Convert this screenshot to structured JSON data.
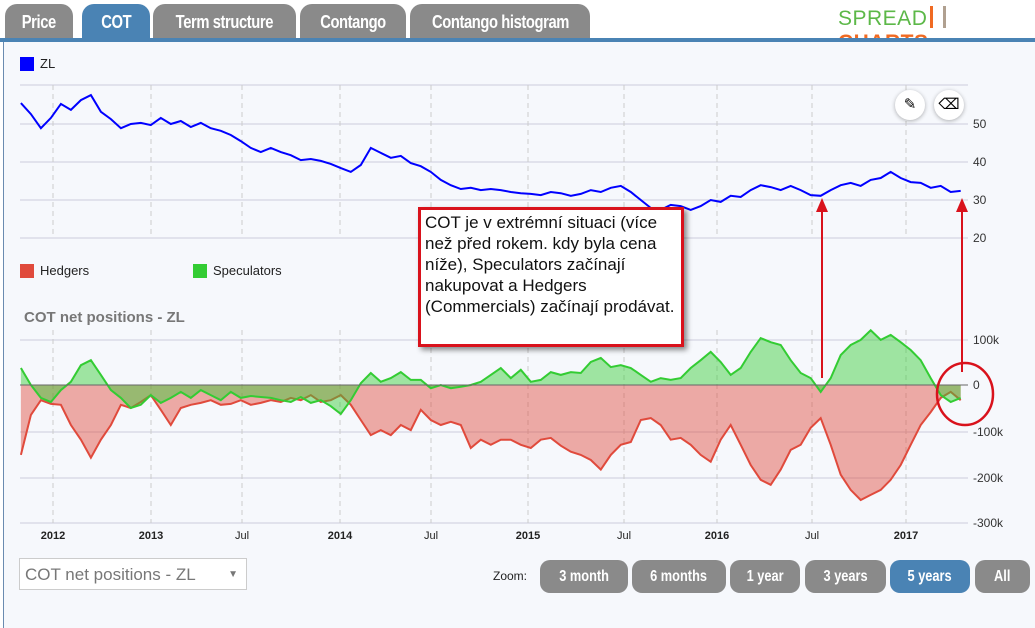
{
  "tabs": [
    {
      "label": "Price"
    },
    {
      "label": "COT"
    },
    {
      "label": "Term structure"
    },
    {
      "label": "Contango"
    },
    {
      "label": "Contango histogram"
    }
  ],
  "active_tab": "COT",
  "logo": {
    "part1": "SPREAD",
    "part2": "CHARTS"
  },
  "toolbar": {
    "pencil_icon": "pencil-icon",
    "eraser_icon": "eraser-icon"
  },
  "annotation": "COT je v extrémní situaci (více než před rokem. kdy byla cena níže), Speculators začínají nakupovat a Hedgers (Commercials) začínají prodávat.",
  "selector": {
    "value": "COT net positions - ZL"
  },
  "zoom": {
    "label": "Zoom:",
    "buttons": [
      "3 month",
      "6 months",
      "1 year",
      "3 years",
      "5 years",
      "All"
    ],
    "active": "5 years"
  },
  "colors": {
    "accent": "#4a83b4",
    "price": "#0000ff",
    "hedgers": "#e04a3c",
    "speculators": "#33cc33",
    "annotation": "#d9121c"
  },
  "chart_data": [
    {
      "type": "line",
      "legend": [
        "ZL"
      ],
      "x_start": 2011.83,
      "x_step": 0.0529,
      "ylim": [
        20,
        60
      ],
      "yticks": [
        "50",
        "40",
        "30",
        "20"
      ],
      "series": [
        {
          "name": "ZL",
          "values": [
            55.5,
            52.6,
            48.9,
            51.6,
            55.3,
            53.7,
            56.3,
            57.6,
            53.2,
            51.3,
            48.9,
            50,
            50.3,
            49.7,
            51.6,
            50,
            50.8,
            49.2,
            50.3,
            48.9,
            48.2,
            47.1,
            45.5,
            43.7,
            42.6,
            43.7,
            42.6,
            41.8,
            40.5,
            40.8,
            40.3,
            39.5,
            38.4,
            37.4,
            39.2,
            43.7,
            42.4,
            41.1,
            41.6,
            39.7,
            38.9,
            37.4,
            35.3,
            33.9,
            32.9,
            33.2,
            32.6,
            32.9,
            32.6,
            32.1,
            31.8,
            31.6,
            31.3,
            32.1,
            31.8,
            31.1,
            31.6,
            32.6,
            32.1,
            33.2,
            33.7,
            32.1,
            30,
            27.9,
            27.4,
            28.7,
            28.4,
            27.4,
            28.4,
            30,
            29.5,
            31.1,
            30.8,
            32.6,
            33.9,
            33.4,
            32.6,
            33.7,
            32.6,
            31.3,
            31.1,
            32.6,
            33.9,
            34.5,
            33.7,
            35.3,
            35.8,
            37.4,
            35.8,
            34.7,
            34.5,
            33.2,
            33.7,
            32.1,
            32.4
          ]
        }
      ]
    },
    {
      "type": "area",
      "title": "COT net positions - ZL",
      "legend": [
        "Hedgers",
        "Speculators"
      ],
      "x_start": 2011.83,
      "x_step": 0.0529,
      "ylim": [
        -300,
        100
      ],
      "yticks": [
        "100k",
        "0",
        "-100k",
        "-200k",
        "-300k"
      ],
      "xticks": [
        "2012",
        "2013",
        "Jul",
        "2014",
        "Jul",
        "2015",
        "Jul",
        "2016",
        "Jul",
        "2017"
      ],
      "series": [
        {
          "name": "Hedgers",
          "values": [
            -152,
            -65,
            -33,
            -41,
            -43,
            -87,
            -119,
            -158,
            -119,
            -87,
            -43,
            -50,
            -37,
            -22,
            -54,
            -87,
            -50,
            -43,
            -39,
            -33,
            -43,
            -41,
            -33,
            -43,
            -39,
            -33,
            -37,
            -28,
            -33,
            -22,
            -37,
            -33,
            -22,
            -43,
            -76,
            -109,
            -98,
            -109,
            -87,
            -98,
            -54,
            -76,
            -87,
            -80,
            -87,
            -137,
            -119,
            -130,
            -119,
            -119,
            -130,
            -137,
            -119,
            -115,
            -132,
            -145,
            -152,
            -163,
            -184,
            -152,
            -130,
            -124,
            -76,
            -72,
            -87,
            -119,
            -115,
            -130,
            -152,
            -167,
            -119,
            -87,
            -130,
            -174,
            -206,
            -217,
            -184,
            -141,
            -130,
            -93,
            -72,
            -130,
            -195,
            -228,
            -250,
            -239,
            -228,
            -206,
            -174,
            -130,
            -87,
            -59,
            -28,
            -15,
            -33
          ]
        },
        {
          "name": "Speculators",
          "values": [
            37,
            0,
            -28,
            -37,
            -11,
            7,
            43,
            54,
            22,
            -11,
            -28,
            -50,
            -43,
            -22,
            -39,
            -28,
            -15,
            -28,
            -11,
            -22,
            -33,
            -15,
            -28,
            -24,
            -26,
            -28,
            -33,
            -37,
            -26,
            -39,
            -33,
            -46,
            -63,
            -33,
            4,
            26,
            7,
            15,
            28,
            11,
            11,
            -7,
            0,
            -7,
            -4,
            0,
            7,
            22,
            37,
            15,
            33,
            7,
            11,
            28,
            22,
            28,
            26,
            50,
            59,
            39,
            43,
            37,
            22,
            7,
            15,
            11,
            15,
            37,
            54,
            72,
            50,
            22,
            37,
            72,
            102,
            93,
            87,
            54,
            26,
            15,
            -15,
            15,
            65,
            87,
            98,
            119,
            98,
            109,
            93,
            76,
            54,
            15,
            -22,
            -37,
            -28
          ]
        }
      ]
    }
  ]
}
